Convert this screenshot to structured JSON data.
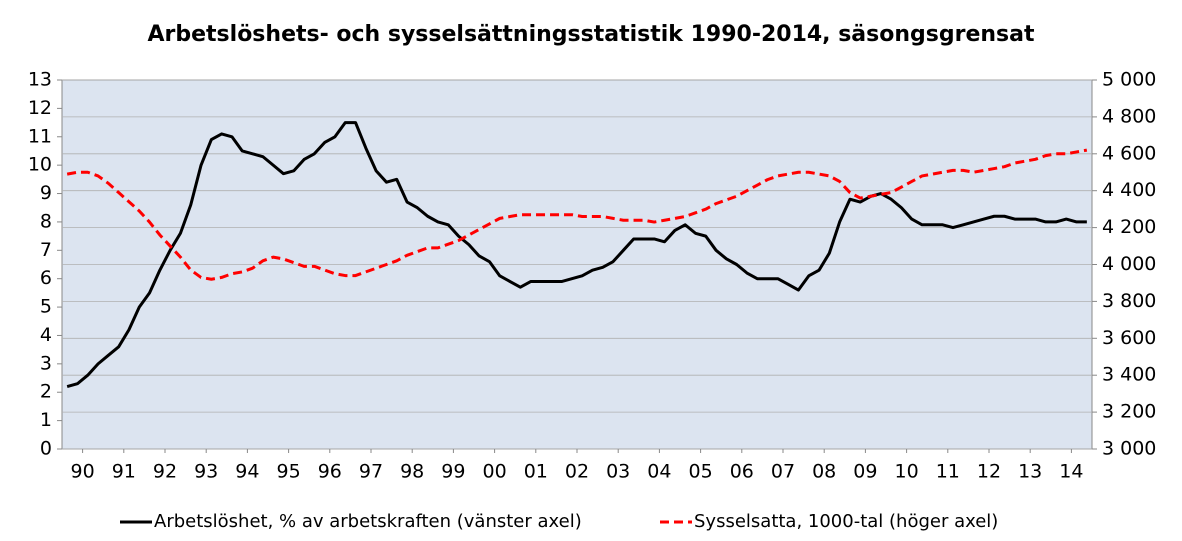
{
  "chart_data": {
    "type": "line",
    "title": "Arbetslöshets- och sysselsättningsstatistik 1990-2014, säsongsgrensat",
    "x": [
      1990.125,
      1990.375,
      1990.625,
      1990.875,
      1991.125,
      1991.375,
      1991.625,
      1991.875,
      1992.125,
      1992.375,
      1992.625,
      1992.875,
      1993.125,
      1993.375,
      1993.625,
      1993.875,
      1994.125,
      1994.375,
      1994.625,
      1994.875,
      1995.125,
      1995.375,
      1995.625,
      1995.875,
      1996.125,
      1996.375,
      1996.625,
      1996.875,
      1997.125,
      1997.375,
      1997.625,
      1997.875,
      1998.125,
      1998.375,
      1998.625,
      1998.875,
      1999.125,
      1999.375,
      1999.625,
      1999.875,
      2000.125,
      2000.375,
      2000.625,
      2000.875,
      2001.125,
      2001.375,
      2001.625,
      2001.875,
      2002.125,
      2002.375,
      2002.625,
      2002.875,
      2003.125,
      2003.375,
      2003.625,
      2003.875,
      2004.125,
      2004.375,
      2004.625,
      2004.875,
      2005.125,
      2005.375,
      2005.625,
      2005.875,
      2006.125,
      2006.375,
      2006.625,
      2006.875,
      2007.125,
      2007.375,
      2007.625,
      2007.875,
      2008.125,
      2008.375,
      2008.625,
      2008.875,
      2009.125,
      2009.375,
      2009.625,
      2009.875,
      2010.125,
      2010.375,
      2010.625,
      2010.875,
      2011.125,
      2011.375,
      2011.625,
      2011.875,
      2012.125,
      2012.375,
      2012.625,
      2012.875,
      2013.125,
      2013.375,
      2013.625,
      2013.875,
      2014.125,
      2014.375,
      2014.625,
      2014.875
    ],
    "xlim": [
      1990,
      2015
    ],
    "xticks": [
      {
        "value": 1990.5,
        "label": "90"
      },
      {
        "value": 1991.5,
        "label": "91"
      },
      {
        "value": 1992.5,
        "label": "92"
      },
      {
        "value": 1993.5,
        "label": "93"
      },
      {
        "value": 1994.5,
        "label": "94"
      },
      {
        "value": 1995.5,
        "label": "95"
      },
      {
        "value": 1996.5,
        "label": "96"
      },
      {
        "value": 1997.5,
        "label": "97"
      },
      {
        "value": 1998.5,
        "label": "98"
      },
      {
        "value": 1999.5,
        "label": "99"
      },
      {
        "value": 2000.5,
        "label": "00"
      },
      {
        "value": 2001.5,
        "label": "01"
      },
      {
        "value": 2002.5,
        "label": "02"
      },
      {
        "value": 2003.5,
        "label": "03"
      },
      {
        "value": 2004.5,
        "label": "04"
      },
      {
        "value": 2005.5,
        "label": "05"
      },
      {
        "value": 2006.5,
        "label": "06"
      },
      {
        "value": 2007.5,
        "label": "07"
      },
      {
        "value": 2008.5,
        "label": "08"
      },
      {
        "value": 2009.5,
        "label": "09"
      },
      {
        "value": 2010.5,
        "label": "10"
      },
      {
        "value": 2011.5,
        "label": "11"
      },
      {
        "value": 2012.5,
        "label": "12"
      },
      {
        "value": 2013.5,
        "label": "13"
      },
      {
        "value": 2014.5,
        "label": "14"
      }
    ],
    "ylim": [
      0,
      13
    ],
    "yticks": [
      0,
      1,
      2,
      3,
      4,
      5,
      6,
      7,
      8,
      9,
      10,
      11,
      12,
      13
    ],
    "y2lim": [
      3000,
      5000
    ],
    "y2ticks": [
      {
        "value": 3000,
        "label": "3 000"
      },
      {
        "value": 3200,
        "label": "3 200"
      },
      {
        "value": 3400,
        "label": "3 400"
      },
      {
        "value": 3600,
        "label": "3 600"
      },
      {
        "value": 3800,
        "label": "3 800"
      },
      {
        "value": 4000,
        "label": "4 000"
      },
      {
        "value": 4200,
        "label": "4 200"
      },
      {
        "value": 4400,
        "label": "4 400"
      },
      {
        "value": 4600,
        "label": "4 600"
      },
      {
        "value": 4800,
        "label": "4 800"
      },
      {
        "value": 5000,
        "label": "5 000"
      }
    ],
    "grid": true,
    "legend": "bottom",
    "series": [
      {
        "name": "Arbetslöshet, % av arbetskraften (vänster axel)",
        "color": "#000000",
        "dash": false,
        "values": [
          2.2,
          2.3,
          2.6,
          3.0,
          3.3,
          3.6,
          4.2,
          5.0,
          5.5,
          6.3,
          7.0,
          7.6,
          8.6,
          10.0,
          10.9,
          11.1,
          11.0,
          10.5,
          10.4,
          10.3,
          10.0,
          9.7,
          9.8,
          10.2,
          10.4,
          10.8,
          11.0,
          11.5,
          11.5,
          10.6,
          9.8,
          9.4,
          9.5,
          8.7,
          8.5,
          8.2,
          8.0,
          7.9,
          7.5,
          7.2,
          6.8,
          6.6,
          6.1,
          5.9,
          5.7,
          5.9,
          5.9,
          5.9,
          5.9,
          6.0,
          6.1,
          6.3,
          6.4,
          6.6,
          7.0,
          7.4,
          7.4,
          7.4,
          7.3,
          7.7,
          7.9,
          7.6,
          7.5,
          7.0,
          6.7,
          6.5,
          6.2,
          6.0,
          6.0,
          6.0,
          5.8,
          5.6,
          6.1,
          6.3,
          6.9,
          8.0,
          8.8,
          8.7,
          8.9,
          9.0,
          8.8,
          8.5,
          8.1,
          7.9,
          7.9,
          7.9,
          7.8,
          7.9,
          8.0,
          8.1,
          8.2,
          8.2,
          8.1,
          8.1,
          8.1,
          8.0,
          8.0,
          8.1,
          8.0,
          8.0
        ]
      },
      {
        "name": "Sysselsatta, 1000-tal (höger axel)",
        "color": "#ff0000",
        "dash": true,
        "axis": "y2",
        "values": [
          4490,
          4500,
          4500,
          4480,
          4440,
          4390,
          4340,
          4290,
          4230,
          4160,
          4100,
          4040,
          3970,
          3930,
          3920,
          3930,
          3950,
          3960,
          3980,
          4020,
          4040,
          4030,
          4010,
          3990,
          3990,
          3970,
          3950,
          3940,
          3940,
          3960,
          3980,
          4000,
          4020,
          4050,
          4070,
          4090,
          4090,
          4110,
          4130,
          4160,
          4190,
          4220,
          4250,
          4260,
          4270,
          4270,
          4270,
          4270,
          4270,
          4270,
          4260,
          4260,
          4260,
          4250,
          4240,
          4240,
          4240,
          4230,
          4240,
          4250,
          4260,
          4280,
          4300,
          4330,
          4350,
          4370,
          4400,
          4430,
          4460,
          4480,
          4490,
          4500,
          4500,
          4490,
          4480,
          4450,
          4390,
          4360,
          4370,
          4380,
          4390,
          4420,
          4450,
          4480,
          4490,
          4500,
          4510,
          4510,
          4500,
          4510,
          4520,
          4530,
          4550,
          4560,
          4570,
          4590,
          4600,
          4600,
          4610,
          4620
        ]
      }
    ]
  }
}
